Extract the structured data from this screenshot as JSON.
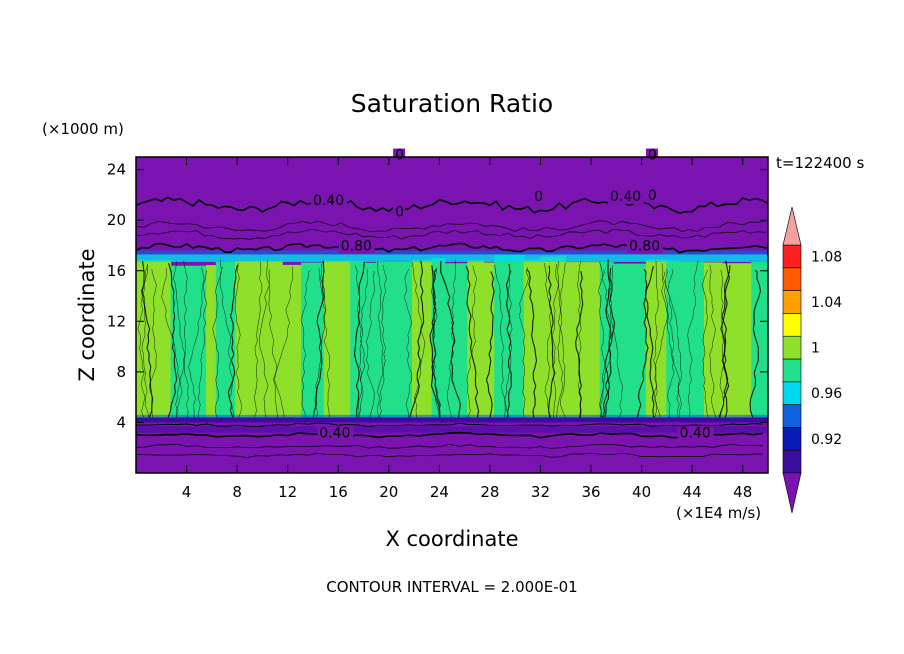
{
  "chart_data": {
    "type": "heatmap",
    "title": "Saturation Ratio",
    "xlabel": "X coordinate",
    "ylabel": "Z coordinate",
    "x_units": "(×1E4 m/s)",
    "y_units": "(×1000 m)",
    "time_label": "t=122400 s",
    "footer": "CONTOUR INTERVAL = 2.000E-01",
    "xlim": [
      0,
      50
    ],
    "ylim": [
      0,
      25
    ],
    "x_ticks": [
      4,
      8,
      12,
      16,
      20,
      24,
      28,
      32,
      36,
      40,
      44,
      48
    ],
    "y_ticks": [
      4,
      8,
      12,
      16,
      20,
      24
    ],
    "contour_labels": [
      {
        "text": "0.40",
        "x": 14,
        "z": 21.2
      },
      {
        "text": "0.40",
        "x": 37.5,
        "z": 21.5
      },
      {
        "text": "0",
        "x": 20.5,
        "z": 20.3
      },
      {
        "text": "0",
        "x": 31.5,
        "z": 21.5
      },
      {
        "text": "0",
        "x": 40.5,
        "z": 21.6
      },
      {
        "text": "0",
        "x": 20.5,
        "z": 24.8
      },
      {
        "text": "0",
        "x": 40.5,
        "z": 24.8
      },
      {
        "text": "0.80",
        "x": 16.2,
        "z": 17.6
      },
      {
        "text": "0.80",
        "x": 39,
        "z": 17.6
      },
      {
        "text": "0.40",
        "x": 14.5,
        "z": 2.8
      },
      {
        "text": "0.40",
        "x": 43,
        "z": 2.8
      }
    ],
    "colorbar": {
      "levels": [
        "0.92",
        "0.96",
        "1",
        "1.04",
        "1.08"
      ],
      "colors": [
        "#7a13b0",
        "#3a0fa0",
        "#0a1ab5",
        "#1060e0",
        "#00d8f0",
        "#22e08a",
        "#8fe02a",
        "#ffff00",
        "#ffa000",
        "#ff5a00",
        "#ff2020",
        "#f2a0a0"
      ]
    }
  }
}
